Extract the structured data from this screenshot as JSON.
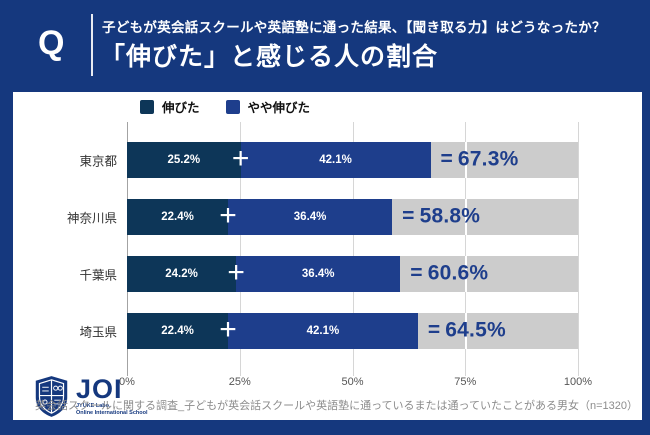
{
  "colors": {
    "background_navy": "#15387E",
    "card_white": "#FFFFFF",
    "series1_navy": "#0D3658",
    "series2_blue": "#1E3E8C",
    "remainder_gray": "#CCCCCC",
    "total_label_navy": "#1E3E8C"
  },
  "header": {
    "q_mark": "Q",
    "title_line1": "子どもが英会話スクールや英語塾に通った結果、【聞き取る力】はどうなったか？",
    "title_line2": "「伸びた」と感じる人の割合"
  },
  "chart_data": {
    "type": "bar",
    "orientation": "horizontal",
    "stacked": true,
    "title": "「伸びた」と感じる人の割合",
    "categories": [
      "東京都",
      "神奈川県",
      "千葉県",
      "埼玉県"
    ],
    "series": [
      {
        "name": "伸びた",
        "color": "#0D3658",
        "values": [
          25.2,
          22.4,
          24.2,
          22.4
        ]
      },
      {
        "name": "やや伸びた",
        "color": "#1E3E8C",
        "values": [
          42.1,
          36.4,
          36.4,
          42.1
        ]
      }
    ],
    "totals": [
      67.3,
      58.8,
      60.6,
      64.5
    ],
    "operators": {
      "plus": "+",
      "equals": "="
    },
    "xlim": [
      0,
      100
    ],
    "xtick_labels": [
      "0%",
      "25%",
      "50%",
      "75%",
      "100%"
    ],
    "xtick_values": [
      0,
      25,
      50,
      75,
      100
    ],
    "grid": true,
    "legend_position": "top",
    "remainder_color": "#CCCCCC"
  },
  "footer": {
    "caption": "英会話スクールに関する調査_子どもが英会話スクールや英語塾に通っているまたは通っていたことがある男女（n=1320）",
    "logo": {
      "name": "JOI",
      "sub_line1": "JYUKE Labo.",
      "sub_line2": "Online International School"
    }
  }
}
